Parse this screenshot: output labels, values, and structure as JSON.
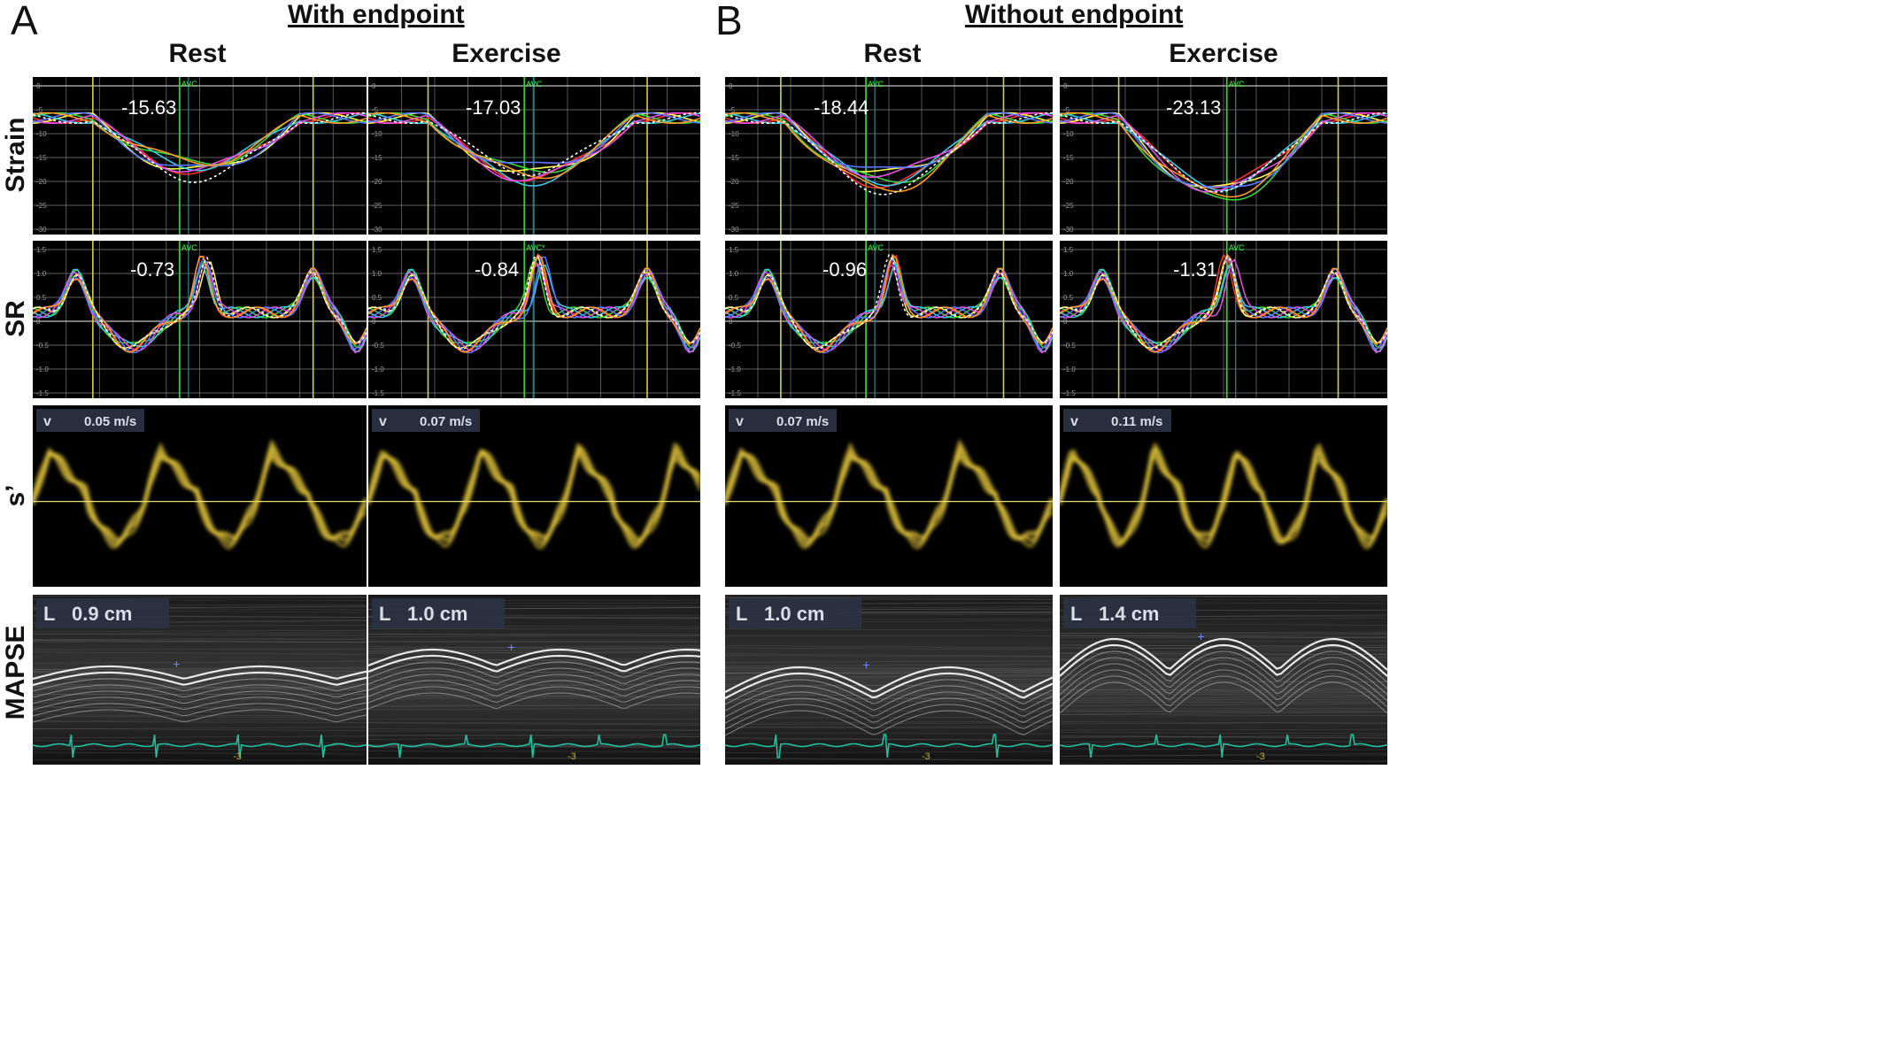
{
  "panels": [
    {
      "letter": "A",
      "group_title": "With endpoint"
    },
    {
      "letter": "B",
      "group_title": "Without endpoint"
    }
  ],
  "columns": [
    "Rest",
    "Exercise",
    "Rest",
    "Exercise"
  ],
  "rows": [
    "Strain",
    "SR",
    "s’",
    "MAPSE"
  ],
  "strain_values": [
    "-15.63",
    "-17.03",
    "-18.44",
    "-23.13"
  ],
  "sr_values": [
    "-0.73",
    "-0.84",
    "-0.96",
    "-1.31"
  ],
  "s_prime_values": [
    "0.05 m/s",
    "0.07 m/s",
    "0.07 m/s",
    "0.11 m/s"
  ],
  "s_prime_prefix": "v",
  "mapse_values": [
    "0.9 cm",
    "1.0 cm",
    "1.0 cm",
    "1.4 cm"
  ],
  "mapse_prefix": "L",
  "avc_label": "AVC",
  "avc_label_alt": "AVC*",
  "ecg_marker": "-3",
  "strain_ticks": [
    "0",
    "-5",
    "-10",
    "-15",
    "-20",
    "-25",
    "-30"
  ],
  "sr_ticks": [
    "1.5",
    "1.0",
    "0.5",
    "0",
    "-0.5",
    "-1.0",
    "-1.5"
  ],
  "trace_colors": [
    "#ff3030",
    "#ffff50",
    "#3cd23c",
    "#3cc8e6",
    "#e650e6",
    "#5a78ff",
    "#ff9a28",
    "#ffffff"
  ],
  "colors": {
    "grid": "#7a7a7a",
    "zero_line": "#c8c8c8",
    "marker_yellow": "#d8d040",
    "marker_green": "#38c838",
    "doppler": "#f0d040",
    "ecg": "#20c0a0"
  }
}
